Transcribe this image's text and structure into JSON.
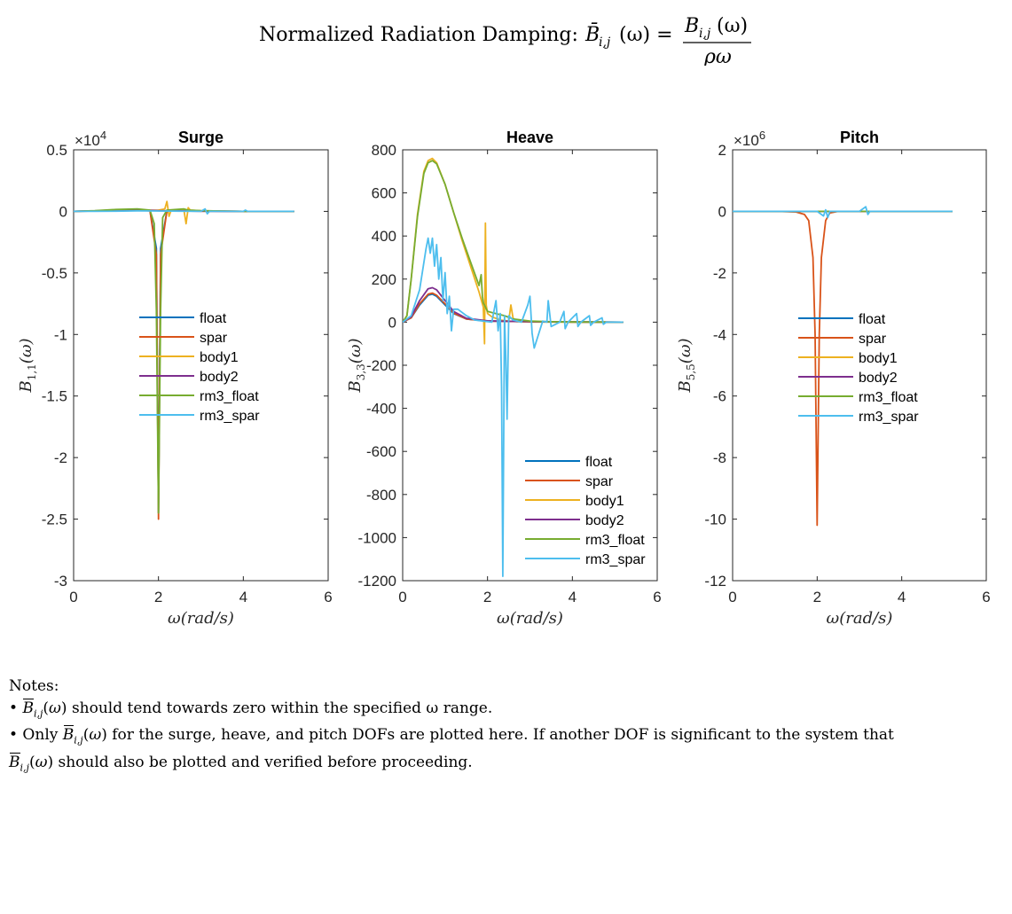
{
  "figure": {
    "title_prefix": "Normalized Radiation Damping:",
    "title_lhs": "B̄",
    "title_lhs_sub": "i,j",
    "title_arg": "(ω) =",
    "title_num": "B",
    "title_num_sub": "i,j",
    "title_num_arg": "(ω)",
    "title_den": "ρω"
  },
  "notes": {
    "heading": "Notes:",
    "bullet1_pre": "•",
    "bullet1_text": "should tend towards zero within the specified ω range.",
    "bullet2_pre": "• Only",
    "bullet2_text": "for the surge, heave, and pitch DOFs are plotted here. If another DOF is significant to the system that",
    "bullet3_text": "should also be plotted and verified before proceeding."
  },
  "chart_data": [
    {
      "type": "line",
      "title": "Surge",
      "xlabel": "ω(rad/s)",
      "ylabel": "B1,1(ω)",
      "exponent_label": "×10^4",
      "xlim": [
        0,
        6
      ],
      "ylim": [
        -3,
        0.5
      ],
      "xticks": [
        "0",
        "2",
        "4",
        "6"
      ],
      "yticks": [
        "0.5",
        "0",
        "-0.5",
        "-1",
        "-1.5",
        "-2",
        "-2.5",
        "-3"
      ],
      "legend_position": "center",
      "series": [
        {
          "name": "float",
          "color": "#0072BD",
          "x": [
            0,
            0.5,
            1.0,
            1.5,
            1.8,
            1.95,
            2.0,
            2.05,
            2.2,
            3.0,
            4.0,
            5.2
          ],
          "y": [
            0,
            0.003,
            0.01,
            0.015,
            0.005,
            -0.3,
            -2.45,
            -0.3,
            0.005,
            0.003,
            0,
            0
          ]
        },
        {
          "name": "spar",
          "color": "#D95319",
          "x": [
            0,
            0.5,
            1.0,
            1.5,
            1.8,
            1.95,
            2.0,
            2.05,
            2.2,
            3.0,
            4.0,
            5.2
          ],
          "y": [
            0,
            0.003,
            0.01,
            0.012,
            0.004,
            -0.35,
            -2.5,
            -0.35,
            0.004,
            0.002,
            0,
            0
          ]
        },
        {
          "name": "body1",
          "color": "#EDB120",
          "x": [
            0,
            1.0,
            2.0,
            2.15,
            2.2,
            2.25,
            2.3,
            2.6,
            2.65,
            2.7,
            2.75,
            3.0,
            4.0,
            5.2
          ],
          "y": [
            0,
            0.005,
            0.01,
            0.02,
            0.08,
            -0.04,
            0.01,
            0.01,
            -0.1,
            0.03,
            0.01,
            0.005,
            0,
            0
          ]
        },
        {
          "name": "body2",
          "color": "#7E2F8E",
          "x": [
            0,
            1.0,
            1.5,
            2.0,
            3.0,
            4.0,
            5.2
          ],
          "y": [
            0,
            0.008,
            0.012,
            0.005,
            0.002,
            0,
            0
          ]
        },
        {
          "name": "rm3_float",
          "color": "#77AC30",
          "x": [
            0,
            0.5,
            1.0,
            1.5,
            1.8,
            1.9,
            1.95,
            2.0,
            2.05,
            2.1,
            2.2,
            2.6,
            2.7,
            3.0,
            4.0,
            5.2
          ],
          "y": [
            0,
            0.005,
            0.015,
            0.02,
            0.01,
            -0.1,
            -0.8,
            -2.45,
            -0.8,
            -0.05,
            0.01,
            0.02,
            0.01,
            0.005,
            0,
            0
          ]
        },
        {
          "name": "rm3_spar",
          "color": "#4DBEEE",
          "x": [
            0,
            0.5,
            1.0,
            1.5,
            2.0,
            2.5,
            3.0,
            3.1,
            3.15,
            3.2,
            3.5,
            4.0,
            4.05,
            4.1,
            5.2
          ],
          "y": [
            0,
            0,
            0.002,
            0.004,
            0.003,
            0.002,
            0,
            0.02,
            -0.02,
            0,
            0,
            0,
            0.01,
            0,
            0
          ]
        }
      ]
    },
    {
      "type": "line",
      "title": "Heave",
      "xlabel": "ω(rad/s)",
      "ylabel": "B3,3(ω)",
      "exponent_label": "",
      "xlim": [
        0,
        6
      ],
      "ylim": [
        -1200,
        800
      ],
      "xticks": [
        "0",
        "2",
        "4",
        "6"
      ],
      "yticks": [
        "800",
        "600",
        "400",
        "200",
        "0",
        "-200",
        "-400",
        "-600",
        "-800",
        "-1000",
        "-1200"
      ],
      "legend_position": "bottom-right",
      "series": [
        {
          "name": "float",
          "color": "#0072BD",
          "x": [
            0,
            0.2,
            0.4,
            0.6,
            0.7,
            0.8,
            1.0,
            1.2,
            1.5,
            2.0,
            3.0,
            4.0,
            5.2
          ],
          "y": [
            0,
            20,
            80,
            125,
            130,
            120,
            80,
            40,
            15,
            5,
            2,
            1,
            0
          ]
        },
        {
          "name": "spar",
          "color": "#D95319",
          "x": [
            0,
            0.2,
            0.4,
            0.6,
            0.7,
            0.8,
            1.0,
            1.2,
            1.5,
            2.0,
            3.0,
            4.0,
            5.2
          ],
          "y": [
            0,
            20,
            85,
            130,
            135,
            125,
            85,
            42,
            15,
            5,
            2,
            1,
            0
          ]
        },
        {
          "name": "body1",
          "color": "#EDB120",
          "x": [
            0,
            0.1,
            0.2,
            0.35,
            0.5,
            0.6,
            0.7,
            0.8,
            1.0,
            1.2,
            1.4,
            1.6,
            1.8,
            1.9,
            1.93,
            1.95,
            1.97,
            2.0,
            2.1,
            2.3,
            2.5,
            2.55,
            2.6,
            2.65,
            2.7,
            3.0,
            4.0,
            5.2
          ],
          "y": [
            0,
            30,
            200,
            500,
            700,
            750,
            760,
            740,
            640,
            510,
            380,
            260,
            140,
            70,
            -100,
            460,
            80,
            40,
            25,
            10,
            5,
            80,
            20,
            5,
            2,
            1,
            0,
            0
          ]
        },
        {
          "name": "body2",
          "color": "#7E2F8E",
          "x": [
            0,
            0.2,
            0.4,
            0.6,
            0.7,
            0.8,
            1.0,
            1.2,
            1.5,
            2.0,
            3.0,
            4.0,
            5.2
          ],
          "y": [
            0,
            25,
            100,
            155,
            160,
            150,
            100,
            50,
            18,
            6,
            2,
            1,
            0
          ]
        },
        {
          "name": "rm3_float",
          "color": "#77AC30",
          "x": [
            0,
            0.1,
            0.2,
            0.35,
            0.5,
            0.6,
            0.7,
            0.8,
            1.0,
            1.2,
            1.4,
            1.6,
            1.8,
            1.85,
            1.88,
            1.9,
            2.0,
            2.2,
            2.4,
            2.6,
            3.0,
            3.5,
            4.0,
            5.2
          ],
          "y": [
            0,
            30,
            200,
            490,
            690,
            740,
            750,
            735,
            640,
            510,
            390,
            280,
            170,
            220,
            120,
            90,
            50,
            40,
            30,
            15,
            5,
            2,
            1,
            0
          ]
        },
        {
          "name": "rm3_spar",
          "color": "#4DBEEE",
          "x": [
            0,
            0.2,
            0.4,
            0.55,
            0.6,
            0.65,
            0.7,
            0.75,
            0.8,
            0.85,
            0.9,
            0.95,
            1.0,
            1.05,
            1.1,
            1.15,
            1.2,
            1.3,
            1.5,
            1.7,
            1.9,
            2.1,
            2.2,
            2.25,
            2.3,
            2.33,
            2.36,
            2.4,
            2.43,
            2.46,
            2.5,
            2.6,
            2.8,
            2.95,
            3.0,
            3.05,
            3.1,
            3.3,
            3.4,
            3.43,
            3.5,
            3.7,
            3.8,
            3.83,
            3.9,
            4.1,
            4.13,
            4.2,
            4.4,
            4.43,
            4.5,
            4.7,
            4.73,
            4.8,
            5.0,
            5.2
          ],
          "y": [
            0,
            30,
            150,
            340,
            390,
            320,
            390,
            260,
            360,
            200,
            300,
            100,
            230,
            40,
            120,
            -40,
            60,
            60,
            30,
            10,
            5,
            0,
            100,
            -40,
            40,
            -300,
            -1180,
            30,
            -150,
            -450,
            30,
            10,
            0,
            80,
            120,
            -50,
            -120,
            5,
            0,
            100,
            -20,
            0,
            50,
            -30,
            0,
            40,
            -20,
            0,
            30,
            -15,
            0,
            20,
            -10,
            0,
            0,
            0
          ]
        }
      ]
    },
    {
      "type": "line",
      "title": "Pitch",
      "xlabel": "ω(rad/s)",
      "ylabel": "B5,5(ω)",
      "exponent_label": "×10^6",
      "xlim": [
        0,
        6
      ],
      "ylim": [
        -12,
        2
      ],
      "xticks": [
        "0",
        "2",
        "4",
        "6"
      ],
      "yticks": [
        "2",
        "0",
        "-2",
        "-4",
        "-6",
        "-8",
        "-10",
        "-12"
      ],
      "legend_position": "center",
      "series": [
        {
          "name": "float",
          "color": "#0072BD",
          "x": [
            0,
            1.0,
            2.0,
            3.0,
            4.0,
            5.2
          ],
          "y": [
            0,
            0,
            0,
            0,
            0,
            0
          ]
        },
        {
          "name": "spar",
          "color": "#D95319",
          "x": [
            0,
            1.0,
            1.5,
            1.7,
            1.8,
            1.9,
            1.95,
            2.0,
            2.05,
            2.1,
            2.2,
            2.3,
            2.5,
            3.0,
            4.0,
            5.2
          ],
          "y": [
            0,
            0,
            -0.02,
            -0.1,
            -0.3,
            -1.5,
            -4.0,
            -10.2,
            -4.0,
            -1.5,
            -0.3,
            -0.05,
            0,
            0,
            0,
            0
          ]
        },
        {
          "name": "body1",
          "color": "#EDB120",
          "x": [
            0,
            2.0,
            4.0,
            5.2
          ],
          "y": [
            0,
            0,
            0,
            0
          ]
        },
        {
          "name": "body2",
          "color": "#7E2F8E",
          "x": [
            0,
            2.0,
            4.0,
            5.2
          ],
          "y": [
            0,
            0,
            0,
            0
          ]
        },
        {
          "name": "rm3_float",
          "color": "#77AC30",
          "x": [
            0,
            2.0,
            4.0,
            5.2
          ],
          "y": [
            0,
            0,
            0,
            0
          ]
        },
        {
          "name": "rm3_spar",
          "color": "#4DBEEE",
          "x": [
            0,
            1.0,
            2.0,
            2.15,
            2.2,
            2.25,
            2.3,
            2.5,
            3.0,
            3.15,
            3.2,
            3.25,
            3.5,
            4.0,
            5.2
          ],
          "y": [
            0,
            0,
            0,
            -0.15,
            0.05,
            -0.2,
            0,
            0,
            0,
            0.15,
            -0.1,
            0,
            0,
            0,
            0
          ]
        }
      ]
    }
  ]
}
